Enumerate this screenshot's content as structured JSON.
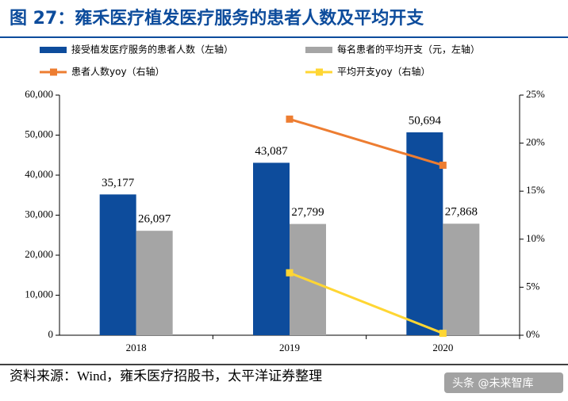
{
  "chart_data": {
    "type": "bar",
    "title": "图 27：雍禾医疗植发医疗服务的患者人数及平均开支",
    "source": "资料来源：Wind，雍禾医疗招股书，太平洋证券整理",
    "watermark": "头条 @未来智库",
    "categories": [
      "2018",
      "2019",
      "2020"
    ],
    "series": [
      {
        "name": "接受植发医疗服务的患者人数（左轴）",
        "color": "#0d4c9c",
        "type": "bar",
        "values": [
          35177,
          43087,
          50694
        ],
        "value_labels": [
          "35,177",
          "43,087",
          "50,694"
        ]
      },
      {
        "name": "每名患者的平均开支（元，左轴）",
        "color": "#a5a5a5",
        "type": "bar",
        "values": [
          26097,
          27799,
          27868
        ],
        "value_labels": [
          "26,097",
          "27,799",
          "27,868"
        ]
      },
      {
        "name": "患者人数yoy（右轴）",
        "color": "#ed7d31",
        "type": "line",
        "axis": "y2",
        "values": [
          null,
          22.5,
          17.7
        ]
      },
      {
        "name": "平均开支yoy（右轴）",
        "color": "#ffd633",
        "type": "line",
        "axis": "y2",
        "values": [
          null,
          6.5,
          0.2
        ]
      }
    ],
    "ylim": [
      0,
      60000
    ],
    "yticks": [
      0,
      {
        "value": 10000,
        "label": "10,000"
      },
      {
        "value": 20000,
        "label": "20,000"
      },
      {
        "value": 30000,
        "label": "30,000"
      },
      {
        "value": 40000,
        "label": "40,000"
      },
      {
        "value": 50000,
        "label": "50,000"
      },
      {
        "value": 60000,
        "label": "60,000"
      }
    ],
    "y2lim": [
      0,
      25
    ],
    "y2ticks": [
      {
        "value": 0,
        "label": "0%"
      },
      {
        "value": 5,
        "label": "5%"
      },
      {
        "value": 10,
        "label": "10%"
      },
      {
        "value": 15,
        "label": "15%"
      },
      {
        "value": 20,
        "label": "20%"
      },
      {
        "value": 25,
        "label": "25%"
      }
    ],
    "grid": false
  }
}
